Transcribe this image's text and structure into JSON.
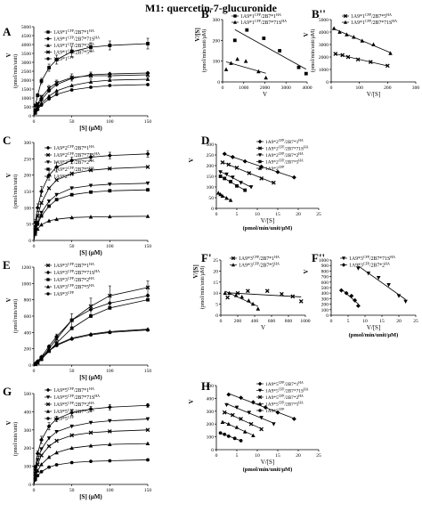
{
  "figure": {
    "title": "M1: quercetin-7-glucuronide"
  },
  "chart_data": [
    {
      "panel": "A",
      "type": "line",
      "xlabel": "[S] (μM)",
      "ylabel": "V",
      "ylabel2": "(pmol/min/unit)",
      "xlim": [
        0,
        150
      ],
      "ylim": [
        0,
        5000
      ],
      "xticks": [
        0,
        50,
        100,
        150
      ],
      "yticks": [
        0,
        500,
        1000,
        1500,
        2000,
        2500,
        3000,
        3500,
        4000,
        4500,
        5000
      ],
      "legend_position": "bottom-right",
      "x": [
        2,
        5,
        10,
        20,
        30,
        50,
        75,
        100,
        150
      ],
      "series": [
        {
          "name": "1A9*1^CFP/2B7*1^HA",
          "marker": "square",
          "values": [
            580,
            1150,
            1950,
            2700,
            3150,
            3600,
            3850,
            3950,
            4050
          ],
          "err": [
            60,
            90,
            150,
            200,
            250,
            300,
            250,
            250,
            300
          ]
        },
        {
          "name": "1A9*1^CFP/2B7*71S^HA",
          "marker": "diamond",
          "values": [
            260,
            560,
            900,
            1400,
            1750,
            2100,
            2300,
            2350,
            2400
          ]
        },
        {
          "name": "1A9*1^CFP/2B7*2^HA",
          "marker": "triangle",
          "values": [
            170,
            400,
            700,
            1100,
            1400,
            1700,
            1900,
            2000,
            2050
          ]
        },
        {
          "name": "1A9*1^CFP/2B7*5^HA",
          "marker": "x",
          "values": [
            310,
            660,
            1050,
            1550,
            1850,
            2150,
            2250,
            2250,
            2300
          ],
          "err": [
            40,
            80,
            100,
            150,
            150,
            200,
            200,
            150,
            150
          ]
        },
        {
          "name": "1A9*1^CFP",
          "marker": "circle",
          "values": [
            150,
            350,
            600,
            950,
            1200,
            1450,
            1600,
            1700,
            1750
          ]
        }
      ]
    },
    {
      "panel": "B'",
      "type": "scatter",
      "xlabel": "V",
      "ylabel": "V/[S]",
      "ylabel2": "(pmol/min/unit/μM)",
      "xlim": [
        0,
        4000
      ],
      "ylim": [
        0,
        300
      ],
      "xticks": [
        0,
        1000,
        2000,
        3000,
        4000
      ],
      "yticks": [
        0,
        100,
        200,
        300
      ],
      "legend_position": "top-right",
      "series": [
        {
          "name": "1A9*1^CFP/2B7*1^HA",
          "marker": "square",
          "x": [
            580,
            1150,
            1950,
            2700,
            3600,
            3950
          ],
          "y": [
            200,
            250,
            210,
            150,
            70,
            40
          ]
        },
        {
          "name": "1A9*1^CFP/2B7*71S^HA",
          "marker": "triangle",
          "x": [
            170,
            400,
            700,
            1100,
            1700,
            2050
          ],
          "y": [
            60,
            90,
            110,
            100,
            50,
            20
          ]
        }
      ]
    },
    {
      "panel": "B''",
      "type": "scatter",
      "xlabel": "V/[S]",
      "ylabel": "V",
      "ylabel2": "(pmol/min/unit/μM)",
      "xlim": [
        0,
        300
      ],
      "ylim": [
        0,
        5000
      ],
      "xticks": [
        0,
        100,
        200,
        300
      ],
      "yticks": [
        0,
        1000,
        2000,
        3000,
        4000,
        5000
      ],
      "legend_position": "top-right",
      "series": [
        {
          "name": "1A9*1^CFP/2B7*5^HA",
          "marker": "x",
          "x": [
            15,
            40,
            60,
            95,
            140,
            200
          ],
          "y": [
            2250,
            2150,
            2000,
            1800,
            1600,
            1300
          ]
        },
        {
          "name": "1A9*1^CFP/2B7*71S^HA",
          "marker": "triangle",
          "x": [
            10,
            30,
            55,
            80,
            110,
            150,
            210
          ],
          "y": [
            4300,
            4000,
            3800,
            3600,
            3300,
            3000,
            2300
          ]
        }
      ]
    },
    {
      "panel": "C",
      "type": "line",
      "xlabel": "[S] (μM)",
      "ylabel": "V",
      "ylabel2": "(pmol/min/unit)",
      "xlim": [
        0,
        150
      ],
      "ylim": [
        0,
        300
      ],
      "xticks": [
        0,
        50,
        100,
        150
      ],
      "yticks": [
        0,
        50,
        100,
        150,
        200,
        250,
        300
      ],
      "legend_position": "top-right",
      "x": [
        2,
        5,
        10,
        20,
        30,
        50,
        75,
        100,
        150
      ],
      "series": [
        {
          "name": "1A9*2^CFP/2B7*1^HA",
          "marker": "diamond",
          "values": [
            55,
            100,
            150,
            200,
            225,
            245,
            255,
            260,
            265
          ],
          "err": [
            10,
            12,
            15,
            15,
            15,
            10,
            10,
            10,
            10
          ]
        },
        {
          "name": "1A9*2^CFP/2B7*71S^HA",
          "marker": "x",
          "values": [
            40,
            75,
            115,
            160,
            185,
            205,
            215,
            220,
            225
          ]
        },
        {
          "name": "1A9*2^CFP/2B7*2^HA",
          "marker": "inv-triangle",
          "values": [
            30,
            55,
            85,
            120,
            140,
            160,
            168,
            172,
            175
          ]
        },
        {
          "name": "1A9*2^CFP/2B7*5^HA",
          "marker": "square",
          "values": [
            25,
            50,
            75,
            105,
            125,
            140,
            148,
            152,
            155
          ]
        },
        {
          "name": "1A9*2^CFP",
          "marker": "triangle",
          "values": [
            20,
            35,
            48,
            60,
            65,
            70,
            72,
            73,
            74
          ]
        }
      ]
    },
    {
      "panel": "D",
      "type": "scatter",
      "xlabel": "V/[S]",
      "xlabel2": "(pmol/min/unit/μM)",
      "ylabel": "V",
      "xlim": [
        0,
        25
      ],
      "ylim": [
        0,
        300
      ],
      "xticks": [
        0,
        5,
        10,
        15,
        20,
        25
      ],
      "yticks": [
        0,
        50,
        100,
        150,
        200,
        250,
        300
      ],
      "legend_position": "top-right",
      "series": [
        {
          "name": "1A9*2^CFP/2B7*1^HA",
          "marker": "diamond",
          "x": [
            2,
            4,
            7,
            11,
            15,
            19
          ],
          "y": [
            255,
            240,
            220,
            195,
            170,
            145
          ]
        },
        {
          "name": "1A9*2^CFP/2B7*71S^HA",
          "marker": "x",
          "x": [
            1.5,
            3,
            5,
            8,
            11,
            14
          ],
          "y": [
            215,
            205,
            190,
            165,
            140,
            120
          ]
        },
        {
          "name": "1A9*2^CFP/2B7*2^HA",
          "marker": "inv-triangle",
          "x": [
            1,
            2.5,
            4,
            6,
            8.5
          ],
          "y": [
            170,
            160,
            145,
            120,
            100
          ]
        },
        {
          "name": "1A9*2^CFP/2B7*5^HA",
          "marker": "square",
          "x": [
            1,
            2,
            3.5,
            5,
            7
          ],
          "y": [
            150,
            140,
            125,
            105,
            85
          ]
        },
        {
          "name": "1A9*2^CFP",
          "marker": "triangle",
          "x": [
            0.5,
            1,
            1.5,
            2.5,
            3.5
          ],
          "y": [
            72,
            65,
            58,
            48,
            38
          ]
        }
      ]
    },
    {
      "panel": "E",
      "type": "line",
      "xlabel": "[S] (μM)",
      "ylabel": "V",
      "ylabel2": "(pmol/min/unit)",
      "xlim": [
        0,
        150
      ],
      "ylim": [
        0,
        1200
      ],
      "xticks": [
        0,
        50,
        100,
        150
      ],
      "yticks": [
        0,
        200,
        400,
        600,
        800,
        1000,
        1200
      ],
      "legend_position": "top-left",
      "x": [
        2,
        5,
        10,
        20,
        30,
        50,
        75,
        100,
        150
      ],
      "series": [
        {
          "name": "1A9*3^CFP/2B7*1^HA",
          "marker": "x",
          "values": [
            10,
            30,
            80,
            200,
            320,
            550,
            720,
            850,
            950
          ],
          "err": [
            5,
            10,
            20,
            40,
            60,
            80,
            100,
            120,
            80
          ]
        },
        {
          "name": "1A9*3^CFP/2B7*71S^HA",
          "marker": "diamond",
          "values": [
            15,
            40,
            100,
            230,
            350,
            550,
            680,
            760,
            850
          ]
        },
        {
          "name": "1A9*3^CFP/2B7*2^HA",
          "marker": "square",
          "values": [
            10,
            30,
            70,
            170,
            270,
            450,
            600,
            700,
            800
          ]
        },
        {
          "name": "1A9*3^CFP/2B7*5^HA",
          "marker": "triangle",
          "values": [
            20,
            50,
            100,
            180,
            250,
            330,
            380,
            410,
            440
          ]
        },
        {
          "name": "1A9*3^CFP",
          "marker": "circle",
          "values": [
            18,
            45,
            95,
            175,
            240,
            320,
            370,
            400,
            430
          ]
        }
      ]
    },
    {
      "panel": "F'",
      "type": "scatter",
      "xlabel": "V",
      "ylabel": "V/[S]",
      "ylabel2": "(pmol/min/unit/μM)",
      "xlim": [
        0,
        1000
      ],
      "ylim": [
        0,
        25
      ],
      "xticks": [
        0,
        200,
        400,
        600,
        800,
        1000
      ],
      "yticks": [
        0,
        5,
        10,
        15,
        20,
        25
      ],
      "legend_position": "top-left",
      "series": [
        {
          "name": "1A9*3^CFP/2B7*1^HA",
          "marker": "x",
          "x": [
            80,
            200,
            320,
            550,
            720,
            850,
            950
          ],
          "y": [
            8,
            10,
            11,
            11,
            9.6,
            8.5,
            6.3
          ]
        },
        {
          "name": "1A9*3^CFP/2B7*5^HA",
          "marker": "triangle",
          "x": [
            50,
            100,
            180,
            250,
            330,
            380,
            440
          ],
          "y": [
            10,
            10,
            9,
            8.3,
            6.6,
            5.1,
            2.9
          ]
        }
      ]
    },
    {
      "panel": "F''",
      "type": "scatter",
      "xlabel": "V/[S]",
      "xlabel2": "(pmol/min/unit/μM)",
      "ylabel": "V",
      "xlim": [
        0,
        25
      ],
      "ylim": [
        0,
        1000
      ],
      "xticks": [
        0,
        5,
        10,
        15,
        20,
        25
      ],
      "yticks": [
        0,
        100,
        200,
        300,
        400,
        500,
        600,
        700,
        800,
        900,
        1000
      ],
      "legend_position": "top-right",
      "series": [
        {
          "name": "1A9*3^CFP/2B7*71S^HA",
          "marker": "inv-triangle",
          "x": [
            8,
            11,
            14,
            17,
            20,
            22
          ],
          "y": [
            850,
            760,
            680,
            550,
            350,
            250
          ]
        },
        {
          "name": "1A9*3^CFP/2B7*2^HA",
          "marker": "diamond",
          "x": [
            3,
            4.5,
            6,
            7,
            8
          ],
          "y": [
            450,
            400,
            350,
            270,
            170
          ]
        }
      ]
    },
    {
      "panel": "G",
      "type": "line",
      "xlabel": "[S] (μM)",
      "ylabel": "V",
      "ylabel2": "(pmol/min/unit)",
      "xlim": [
        0,
        150
      ],
      "ylim": [
        0,
        500
      ],
      "xticks": [
        0,
        50,
        100,
        150
      ],
      "yticks": [
        0,
        100,
        200,
        300,
        400,
        500
      ],
      "legend_position": "top-right",
      "x": [
        2,
        5,
        10,
        20,
        30,
        50,
        75,
        100,
        150
      ],
      "series": [
        {
          "name": "1A9*5^CFP/2B7*1^HA",
          "marker": "diamond",
          "values": [
            95,
            170,
            245,
            320,
            360,
            395,
            415,
            425,
            435
          ],
          "err": [
            10,
            15,
            20,
            20,
            15,
            15,
            15,
            15,
            10
          ]
        },
        {
          "name": "1A9*5^CFP/2B7*71S^HA",
          "marker": "inv-triangle",
          "values": [
            75,
            135,
            195,
            255,
            290,
            320,
            340,
            350,
            360
          ]
        },
        {
          "name": "1A9*5^CFP/2B7*2^HA",
          "marker": "x",
          "values": [
            60,
            110,
            160,
            210,
            240,
            270,
            285,
            292,
            300
          ]
        },
        {
          "name": "1A9*5^CFP/2B7*5^HA",
          "marker": "triangle",
          "values": [
            40,
            75,
            110,
            150,
            175,
            200,
            213,
            220,
            225
          ]
        },
        {
          "name": "1A9*5^CFP",
          "marker": "circle",
          "values": [
            25,
            48,
            70,
            95,
            108,
            120,
            127,
            130,
            135
          ]
        }
      ]
    },
    {
      "panel": "H",
      "type": "scatter",
      "xlabel": "V/[S]",
      "xlabel2": "(pmol/min/unit/μM)",
      "ylabel": "V",
      "xlim": [
        0,
        25
      ],
      "ylim": [
        0,
        500
      ],
      "xticks": [
        0,
        5,
        10,
        15,
        20,
        25
      ],
      "yticks": [
        0,
        100,
        200,
        300,
        400,
        500
      ],
      "legend_position": "top-right",
      "series": [
        {
          "name": "1A9*5^CFP/2B7*1^HA",
          "marker": "diamond",
          "x": [
            3,
            6,
            9,
            12,
            15,
            19
          ],
          "y": [
            430,
            405,
            370,
            330,
            290,
            240
          ]
        },
        {
          "name": "1A9*5^CFP/2B7*71S^HA",
          "marker": "inv-triangle",
          "x": [
            2.5,
            5,
            8,
            11,
            14
          ],
          "y": [
            350,
            330,
            290,
            250,
            200
          ]
        },
        {
          "name": "1A9*5^CFP/2B7*2^HA",
          "marker": "x",
          "x": [
            2,
            4,
            6,
            8.5,
            11
          ],
          "y": [
            290,
            270,
            240,
            200,
            160
          ]
        },
        {
          "name": "1A9*5^CFP/2B7*5^HA",
          "marker": "triangle",
          "x": [
            1.5,
            3,
            5,
            7,
            9
          ],
          "y": [
            215,
            200,
            175,
            140,
            110
          ]
        },
        {
          "name": "1A9*5^CFP",
          "marker": "circle",
          "x": [
            1,
            2,
            3,
            4.5,
            6
          ],
          "y": [
            130,
            120,
            105,
            88,
            70
          ]
        }
      ]
    }
  ]
}
